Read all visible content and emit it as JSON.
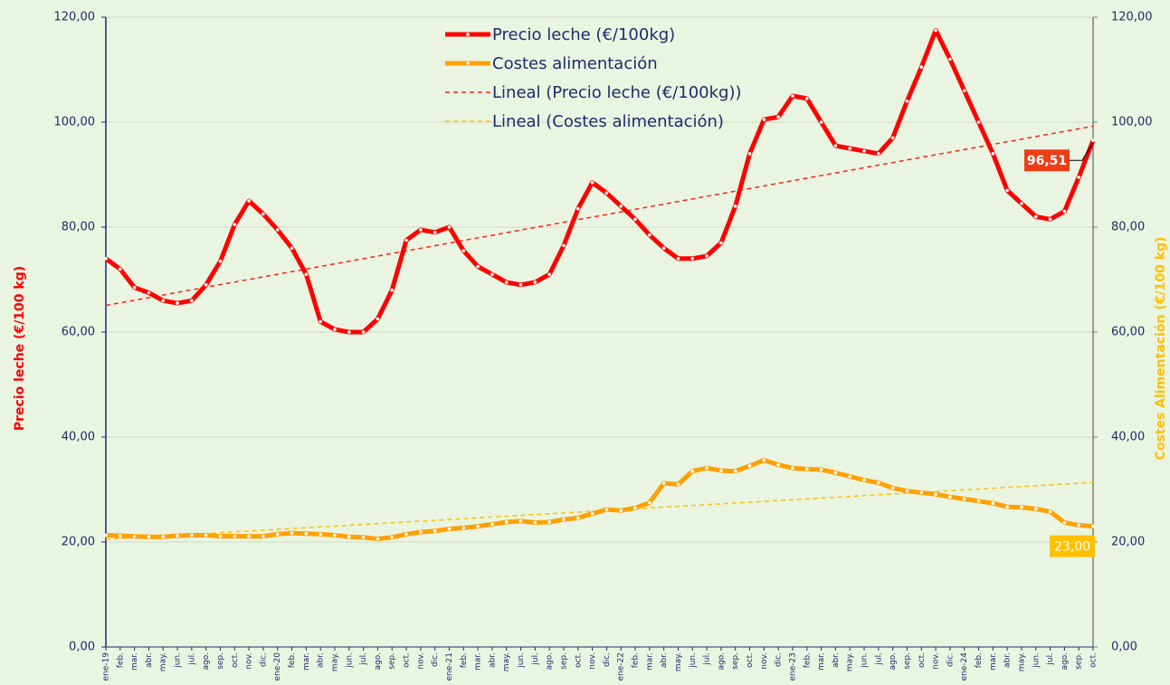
{
  "chart_data": {
    "type": "line",
    "y_label": "Precio leche (€/100 kg)",
    "y2_label": "Costes Alimentación (€/100 kg)",
    "categories": [
      "ene-19",
      "feb.",
      "mar.",
      "abr.",
      "may.",
      "jun.",
      "jul.",
      "ago.",
      "sep.",
      "oct.",
      "nov.",
      "dic.",
      "ene-20",
      "feb.",
      "mar.",
      "abr.",
      "may.",
      "jun.",
      "jul.",
      "ago.",
      "sep.",
      "oct.",
      "nov.",
      "dic.",
      "ene-21",
      "feb.",
      "mar.",
      "abr.",
      "may.",
      "jun.",
      "jul.",
      "ago.",
      "sep.",
      "oct.",
      "nov.",
      "dic.",
      "ene-22",
      "feb.",
      "mar.",
      "abr.",
      "may.",
      "jun.",
      "jul.",
      "ago.",
      "sep.",
      "oct.",
      "nov.",
      "dic.",
      "ene-23",
      "feb.",
      "mar.",
      "abr.",
      "may.",
      "jun.",
      "jul.",
      "ago.",
      "sep.",
      "oct.",
      "nov.",
      "dic.",
      "ene-24",
      "feb.",
      "mar.",
      "abr.",
      "may.",
      "jun.",
      "jul.",
      "ago.",
      "sep.",
      "oct."
    ],
    "series": [
      {
        "name": "Precio leche (€/100kg)",
        "color": "#ff0000",
        "axis": "y",
        "trend_name": "Lineal (Precio leche (€/100kg))",
        "trend_color": "#ff2020",
        "values": [
          74,
          72,
          68.5,
          67.5,
          66,
          65.5,
          66,
          69,
          73.5,
          80.5,
          85,
          82.5,
          79.5,
          76,
          71,
          62,
          60.5,
          60,
          60,
          62.5,
          68,
          77.5,
          79.5,
          79,
          80,
          75.5,
          72.5,
          71,
          69.5,
          69,
          69.5,
          71,
          76.5,
          83.5,
          88.5,
          86.5,
          84,
          81.5,
          78.5,
          76,
          74,
          74,
          74.5,
          77,
          84,
          94,
          100.5,
          101,
          105,
          104.5,
          100,
          95.5,
          95,
          94.5,
          94,
          97,
          104,
          110.5,
          117.5,
          112,
          106,
          100,
          94,
          87,
          84.5,
          82,
          81.5,
          83,
          89.5,
          96.51
        ],
        "value_labels": [
          null,
          null,
          null,
          null,
          null,
          null,
          null,
          null,
          null,
          null,
          null,
          null,
          null,
          null,
          null,
          null,
          null,
          null,
          null,
          null,
          null,
          null,
          null,
          null,
          null,
          null,
          null,
          null,
          null,
          null,
          null,
          null,
          null,
          null,
          null,
          null,
          null,
          null,
          null,
          null,
          null,
          null,
          null,
          null,
          null,
          null,
          null,
          null,
          null,
          null,
          null,
          null,
          null,
          null,
          null,
          null,
          null,
          null,
          null,
          null,
          null,
          null,
          null,
          null,
          null,
          null,
          null,
          null,
          null,
          "96,51"
        ],
        "label_color": "#f03c14"
      },
      {
        "name": "Costes alimentación",
        "color": "#ffa000",
        "axis": "y2",
        "trend_name": "Lineal (Costes alimentación)",
        "trend_color": "#ffc000",
        "values": [
          21.3,
          21.2,
          21.1,
          21,
          21,
          21.2,
          21.3,
          21.3,
          21.1,
          21.1,
          21.1,
          21.1,
          21.5,
          21.7,
          21.6,
          21.5,
          21.3,
          21,
          20.9,
          20.6,
          20.9,
          21.5,
          21.9,
          22.1,
          22.5,
          22.7,
          23,
          23.4,
          23.8,
          24,
          23.7,
          23.8,
          24.3,
          24.6,
          25.4,
          26.2,
          26,
          26.5,
          27.5,
          31.2,
          31,
          33.5,
          34.1,
          33.6,
          33.5,
          34.5,
          35.6,
          34.7,
          34.1,
          33.9,
          33.8,
          33.2,
          32.5,
          31.8,
          31.3,
          30.3,
          29.7,
          29.4,
          29.1,
          28.6,
          28.2,
          27.8,
          27.4,
          26.7,
          26.6,
          26.3,
          25.8,
          23.7,
          23.2,
          23
        ],
        "value_labels": [
          null,
          null,
          null,
          null,
          null,
          null,
          null,
          null,
          null,
          null,
          null,
          null,
          null,
          null,
          null,
          null,
          null,
          null,
          null,
          null,
          null,
          null,
          null,
          null,
          null,
          null,
          null,
          null,
          null,
          null,
          null,
          null,
          null,
          null,
          null,
          null,
          null,
          null,
          null,
          null,
          null,
          null,
          null,
          null,
          null,
          null,
          null,
          null,
          null,
          null,
          null,
          null,
          null,
          null,
          null,
          null,
          null,
          null,
          null,
          null,
          null,
          null,
          null,
          null,
          null,
          null,
          null,
          null,
          null,
          "23,00"
        ],
        "label_color": "#ffc000"
      }
    ],
    "ylim": [
      0,
      120
    ],
    "yticks": [
      {
        "value": 0,
        "label": "0,00"
      },
      {
        "value": 20,
        "label": "20,00"
      },
      {
        "value": 40,
        "label": "40,00"
      },
      {
        "value": 60,
        "label": "60,00"
      },
      {
        "value": 80,
        "label": "80,00"
      },
      {
        "value": 100,
        "label": "100,00"
      },
      {
        "value": 120,
        "label": "120,00"
      }
    ],
    "y2lim": [
      0,
      120
    ],
    "y2ticks": [
      {
        "value": 0,
        "label": "0,00"
      },
      {
        "value": 20,
        "label": "20,00"
      },
      {
        "value": 40,
        "label": "40,00"
      },
      {
        "value": 60,
        "label": "60,00"
      },
      {
        "value": 80,
        "label": "80,00"
      },
      {
        "value": 100,
        "label": "100,00"
      },
      {
        "value": 120,
        "label": "120,00"
      }
    ],
    "grid": true,
    "legend": "top"
  }
}
